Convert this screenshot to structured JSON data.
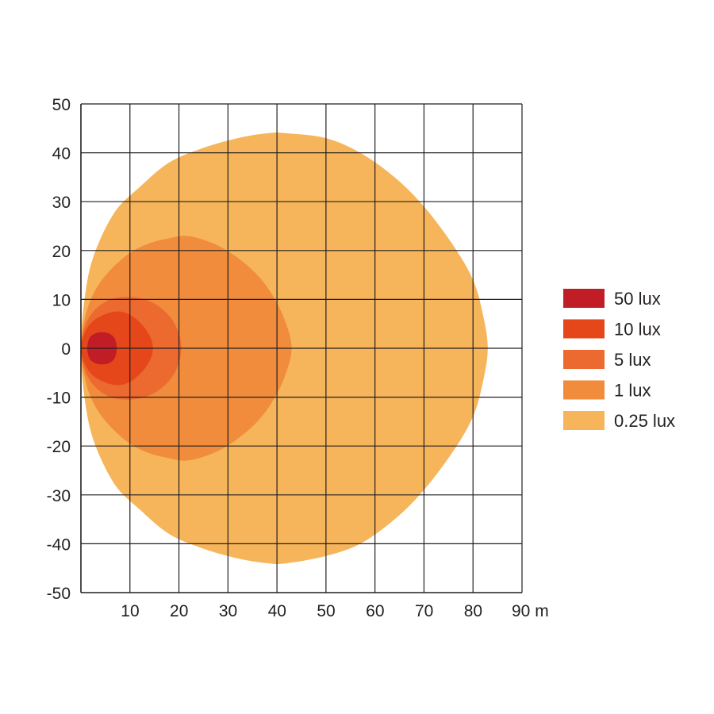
{
  "chart_data": {
    "type": "area",
    "title": "",
    "xlabel": "",
    "ylabel": "",
    "x_unit": "m",
    "xlim": [
      0,
      90
    ],
    "ylim": [
      -50,
      50
    ],
    "x_ticks": [
      10,
      20,
      30,
      40,
      50,
      60,
      70,
      80,
      90
    ],
    "x_tick_labels": [
      "10",
      "20",
      "30",
      "40",
      "50",
      "60",
      "70",
      "80",
      "90 m"
    ],
    "y_ticks": [
      50,
      40,
      30,
      20,
      10,
      0,
      -10,
      -20,
      -30,
      -40,
      -50
    ],
    "y_tick_labels": [
      "50",
      "40",
      "30",
      "20",
      "10",
      "0",
      "-10",
      "-20",
      "-30",
      "-40",
      "-50"
    ],
    "grid": true,
    "legend_position": "right",
    "series": [
      {
        "name": "0.25 lux",
        "color": "#f6b55a",
        "points": [
          [
            0,
            0
          ],
          [
            1,
            12
          ],
          [
            3,
            20
          ],
          [
            7,
            28
          ],
          [
            12,
            33
          ],
          [
            18,
            38
          ],
          [
            25,
            41
          ],
          [
            32,
            43
          ],
          [
            38,
            44
          ],
          [
            42,
            44
          ],
          [
            50,
            43
          ],
          [
            57,
            40
          ],
          [
            64,
            35
          ],
          [
            70,
            29
          ],
          [
            76,
            21
          ],
          [
            80,
            14
          ],
          [
            82,
            7
          ],
          [
            83,
            0
          ],
          [
            82,
            -7
          ],
          [
            80,
            -14
          ],
          [
            76,
            -21
          ],
          [
            70,
            -29
          ],
          [
            64,
            -35
          ],
          [
            57,
            -40
          ],
          [
            50,
            -42.5
          ],
          [
            42,
            -44
          ],
          [
            38,
            -44
          ],
          [
            32,
            -43
          ],
          [
            25,
            -41
          ],
          [
            18,
            -38
          ],
          [
            12,
            -33
          ],
          [
            7,
            -28
          ],
          [
            3,
            -20
          ],
          [
            1,
            -12
          ]
        ]
      },
      {
        "name": "1 lux",
        "color": "#f08c3b",
        "points": [
          [
            0,
            0
          ],
          [
            1,
            7
          ],
          [
            3,
            12
          ],
          [
            6,
            16
          ],
          [
            10,
            19.5
          ],
          [
            14,
            21.5
          ],
          [
            18,
            22.5
          ],
          [
            21,
            23
          ],
          [
            24,
            22.5
          ],
          [
            28,
            21
          ],
          [
            32,
            18.5
          ],
          [
            36,
            15
          ],
          [
            39,
            11
          ],
          [
            41.5,
            6
          ],
          [
            43,
            0
          ],
          [
            41.5,
            -6
          ],
          [
            39,
            -11
          ],
          [
            36,
            -15
          ],
          [
            32,
            -18.5
          ],
          [
            28,
            -21
          ],
          [
            24,
            -22.5
          ],
          [
            21,
            -23
          ],
          [
            18,
            -22.5
          ],
          [
            14,
            -21.5
          ],
          [
            10,
            -19.5
          ],
          [
            6,
            -16
          ],
          [
            3,
            -12
          ],
          [
            1,
            -7
          ]
        ]
      },
      {
        "name": "5 lux",
        "color": "#ec6a30",
        "points": [
          [
            0,
            0
          ],
          [
            0.5,
            3.5
          ],
          [
            1.5,
            6
          ],
          [
            3,
            8
          ],
          [
            5,
            9.5
          ],
          [
            7,
            10.3
          ],
          [
            10,
            10.5
          ],
          [
            13,
            10
          ],
          [
            16,
            8.5
          ],
          [
            18.5,
            6
          ],
          [
            20,
            3
          ],
          [
            20.5,
            0
          ],
          [
            20,
            -3
          ],
          [
            18.5,
            -6
          ],
          [
            16,
            -8.5
          ],
          [
            13,
            -10
          ],
          [
            10,
            -10.5
          ],
          [
            7,
            -10.3
          ],
          [
            5,
            -9.5
          ],
          [
            3,
            -8
          ],
          [
            1.5,
            -6
          ],
          [
            0.5,
            -3.5
          ]
        ]
      },
      {
        "name": "10 lux",
        "color": "#e5471b",
        "points": [
          [
            0,
            0
          ],
          [
            0.5,
            2.5
          ],
          [
            1.5,
            4.5
          ],
          [
            3,
            6
          ],
          [
            5,
            7
          ],
          [
            7,
            7.5
          ],
          [
            9,
            7.3
          ],
          [
            11,
            6.2
          ],
          [
            13,
            4.2
          ],
          [
            14.3,
            2
          ],
          [
            14.7,
            0
          ],
          [
            14.3,
            -2
          ],
          [
            13,
            -4.2
          ],
          [
            11,
            -6.2
          ],
          [
            9,
            -7.3
          ],
          [
            7,
            -7.5
          ],
          [
            5,
            -7
          ],
          [
            3,
            -6
          ],
          [
            1.5,
            -4.5
          ],
          [
            0.5,
            -2.5
          ]
        ]
      },
      {
        "name": "50 lux",
        "color": "#c11d26",
        "points": [
          [
            1.3,
            0
          ],
          [
            1.7,
            2
          ],
          [
            2.8,
            3
          ],
          [
            4.3,
            3.3
          ],
          [
            5.8,
            3
          ],
          [
            6.9,
            2
          ],
          [
            7.3,
            0
          ],
          [
            6.9,
            -2
          ],
          [
            5.8,
            -3
          ],
          [
            4.3,
            -3.3
          ],
          [
            2.8,
            -3
          ],
          [
            1.7,
            -2
          ]
        ]
      }
    ]
  }
}
